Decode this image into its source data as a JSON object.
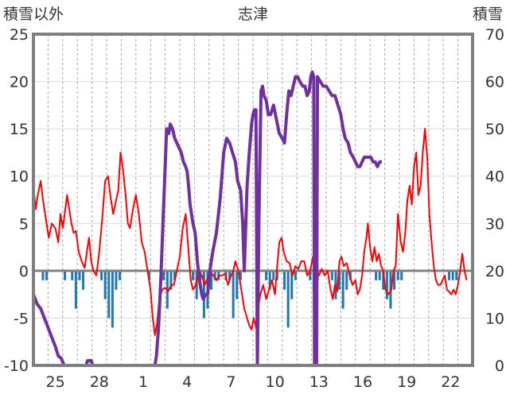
{
  "chart_data": {
    "type": "line",
    "title": "志津",
    "left_axis_title": "積雪以外",
    "right_axis_title": "積雪",
    "ylim_left": [
      -10,
      25
    ],
    "ylim_right": [
      0,
      70
    ],
    "left_ticks": [
      "25",
      "20",
      "15",
      "10",
      "5",
      "0",
      "-5",
      "-10"
    ],
    "right_ticks": [
      "70",
      "60",
      "50",
      "40",
      "30",
      "20",
      "10",
      "0"
    ],
    "x_ticks": [
      "25",
      "28",
      "1",
      "4",
      "7",
      "10",
      "13",
      "16",
      "19",
      "22"
    ],
    "x_range_days": 30,
    "grid": "horizontal solid, vertical dashed",
    "colors": {
      "temperature": "#ff0000",
      "precipitation": "#1f77b4",
      "snow_depth": "#7030a0",
      "zero_line": "#808080",
      "frame": "#7f7f7f"
    },
    "series": [
      {
        "axis": "left",
        "kind": "line",
        "color": "#ff0000",
        "points": [
          [
            0,
            9
          ],
          [
            0.3,
            6.5
          ],
          [
            0.6,
            8
          ],
          [
            1,
            9.5
          ],
          [
            1.3,
            7.5
          ],
          [
            1.7,
            5.5
          ],
          [
            2.1,
            3.5
          ],
          [
            2.5,
            5
          ],
          [
            3,
            4.5
          ],
          [
            3.4,
            3
          ],
          [
            3.7,
            6
          ],
          [
            4,
            4.5
          ],
          [
            4.2,
            5.5
          ],
          [
            4.6,
            8
          ],
          [
            4.8,
            7
          ],
          [
            5.2,
            5
          ],
          [
            5.5,
            4
          ],
          [
            5.8,
            4.2
          ],
          [
            6.2,
            2
          ],
          [
            6.6,
            1
          ],
          [
            7,
            0.3
          ],
          [
            7.4,
            2.5
          ],
          [
            7.6,
            3.5
          ],
          [
            7.9,
            1
          ],
          [
            8.2,
            0
          ],
          [
            8.6,
            -0.5
          ],
          [
            9,
            2
          ],
          [
            9.4,
            5.5
          ],
          [
            9.8,
            9.5
          ],
          [
            10.2,
            10
          ],
          [
            10.5,
            8
          ],
          [
            10.9,
            6
          ],
          [
            11.3,
            7.5
          ],
          [
            11.6,
            8.5
          ],
          [
            11.9,
            12.5
          ],
          [
            12.2,
            11
          ],
          [
            12.6,
            8
          ],
          [
            12.9,
            5
          ],
          [
            13.2,
            4.5
          ],
          [
            13.6,
            6.5
          ],
          [
            14,
            8
          ],
          [
            14.4,
            6
          ],
          [
            14.8,
            3
          ],
          [
            15.2,
            2
          ],
          [
            15.6,
            0
          ],
          [
            16,
            -2
          ],
          [
            16.3,
            -5
          ],
          [
            16.6,
            -6.8
          ],
          [
            16.9,
            -5.5
          ],
          [
            17.2,
            -3
          ],
          [
            17.6,
            -2
          ],
          [
            18,
            -1.8
          ],
          [
            18.4,
            -2.2
          ],
          [
            18.8,
            -1.5
          ],
          [
            19.2,
            -1.5
          ],
          [
            19.6,
            0
          ],
          [
            20,
            1.5
          ],
          [
            20.4,
            4.5
          ],
          [
            20.8,
            6
          ],
          [
            21.2,
            2
          ],
          [
            21.5,
            -1
          ],
          [
            21.8,
            -2
          ],
          [
            22.2,
            -1.5
          ],
          [
            22.6,
            0
          ],
          [
            23,
            -0.5
          ],
          [
            23.4,
            -1.5
          ],
          [
            23.8,
            -0.8
          ],
          [
            24.2,
            -0.2
          ],
          [
            24.6,
            -0.5
          ],
          [
            25,
            -1
          ],
          [
            25.4,
            -0.5
          ],
          [
            25.8,
            -0.5
          ],
          [
            26.2,
            -0.3
          ],
          [
            26.6,
            -1.5
          ],
          [
            27,
            -0.5
          ],
          [
            27.3,
            0
          ],
          [
            27.6,
            1
          ],
          [
            28,
            0
          ],
          [
            28.4,
            -2
          ],
          [
            28.8,
            -4
          ],
          [
            29.2,
            -5
          ],
          [
            29.5,
            -5.8
          ],
          [
            29.8,
            -6.2
          ],
          [
            30.1,
            -5
          ],
          [
            30.4,
            -6
          ],
          [
            30.7,
            -4
          ],
          [
            31,
            -2.5
          ],
          [
            31.4,
            -1.5
          ],
          [
            31.8,
            -3
          ],
          [
            32.2,
            -2
          ],
          [
            32.6,
            -1
          ],
          [
            33,
            -2.5
          ],
          [
            33.3,
            0.5
          ],
          [
            33.6,
            3
          ],
          [
            33.9,
            3.5
          ],
          [
            34.2,
            2
          ],
          [
            34.6,
            1
          ],
          [
            35,
            0.8
          ],
          [
            35.4,
            -0.5
          ],
          [
            35.8,
            0.5
          ],
          [
            36.2,
            0.2
          ],
          [
            36.6,
            1
          ],
          [
            37,
            1
          ],
          [
            37.4,
            -0.5
          ],
          [
            37.8,
            0
          ],
          [
            38.2,
            1.5
          ],
          [
            38.6,
            0.5
          ],
          [
            39,
            -0.5
          ],
          [
            39.4,
            0.2
          ],
          [
            39.8,
            -0.5
          ],
          [
            40.2,
            0
          ],
          [
            40.6,
            -2
          ],
          [
            40.9,
            -3
          ],
          [
            41.2,
            -1.5
          ],
          [
            41.5,
            -2.2
          ],
          [
            41.8,
            1
          ],
          [
            42.1,
            1.5
          ],
          [
            42.4,
            0.5
          ],
          [
            42.8,
            0.8
          ],
          [
            43.2,
            -0.5
          ],
          [
            43.6,
            -1.5
          ],
          [
            44,
            -1
          ],
          [
            44.3,
            -2.5
          ],
          [
            44.6,
            -2
          ],
          [
            44.9,
            -0.5
          ],
          [
            45.2,
            2
          ],
          [
            45.5,
            3.5
          ],
          [
            45.7,
            5
          ],
          [
            46,
            2.5
          ],
          [
            46.3,
            1
          ],
          [
            46.6,
            2.5
          ],
          [
            46.9,
            1
          ],
          [
            47.2,
            1.8
          ],
          [
            47.5,
            0.5
          ],
          [
            47.8,
            0
          ],
          [
            48.1,
            -2
          ],
          [
            48.5,
            -2.5
          ],
          [
            48.9,
            -2
          ],
          [
            49.2,
            0
          ],
          [
            49.5,
            0.5
          ],
          [
            49.8,
            6
          ],
          [
            50.2,
            3
          ],
          [
            50.5,
            2
          ],
          [
            50.8,
            4
          ],
          [
            51.1,
            7.5
          ],
          [
            51.4,
            9
          ],
          [
            51.7,
            7
          ],
          [
            52,
            11
          ],
          [
            52.3,
            12.5
          ],
          [
            52.6,
            8
          ],
          [
            52.9,
            9
          ],
          [
            53.2,
            12.5
          ],
          [
            53.5,
            15
          ],
          [
            53.8,
            12
          ],
          [
            54.1,
            6
          ],
          [
            54.4,
            3
          ],
          [
            54.7,
            0.5
          ],
          [
            55,
            -1
          ],
          [
            55.3,
            -1.5
          ],
          [
            55.6,
            -1.5
          ],
          [
            55.9,
            -1
          ],
          [
            56.2,
            -0.5
          ],
          [
            56.5,
            -2
          ],
          [
            56.8,
            -2.2
          ],
          [
            57.1,
            -2.5
          ],
          [
            57.4,
            -2
          ],
          [
            57.7,
            -2.5
          ],
          [
            58,
            -1.5
          ],
          [
            58.3,
            0
          ],
          [
            58.6,
            1.8
          ],
          [
            58.9,
            0
          ],
          [
            59.2,
            -1
          ]
        ]
      },
      {
        "axis": "left",
        "kind": "bar",
        "color": "#1f77b4",
        "x_start": 1.3,
        "x_step": 0.5,
        "values": [
          -1,
          -1,
          0,
          0,
          0,
          0,
          -1,
          0,
          -1,
          -4,
          -1,
          -2,
          0,
          0,
          0,
          0,
          -1,
          -3,
          -5,
          -6,
          -2,
          -1,
          0,
          0,
          0,
          0,
          0,
          0,
          0,
          -1,
          0,
          0,
          0,
          -1,
          -4,
          -2,
          -1,
          0,
          0,
          0,
          0,
          -1,
          -3,
          -1,
          -5,
          -4,
          -2,
          -1,
          -1,
          0,
          -1,
          -1,
          -5,
          -3,
          -1,
          0,
          0,
          0,
          0,
          0,
          0,
          -1,
          -2,
          -1,
          -1,
          0,
          -2,
          -6,
          -3,
          -1,
          0,
          0,
          0,
          -1,
          -2,
          -1,
          0,
          0,
          0,
          -1,
          -3,
          -2,
          -4,
          -2,
          -1,
          0,
          0,
          0,
          0,
          0,
          0,
          -1,
          -1,
          -2,
          -3,
          -4,
          -2,
          -1,
          -1,
          0,
          0,
          0,
          0,
          0,
          0,
          0,
          0,
          0,
          0,
          0,
          0,
          -1,
          -1,
          -1,
          0,
          0,
          0,
          0,
          0,
          0,
          0
        ]
      },
      {
        "axis": "right",
        "kind": "line",
        "color": "#7030a0",
        "points": [
          [
            0,
            15
          ],
          [
            0.5,
            13
          ],
          [
            1,
            12
          ],
          [
            1.5,
            10
          ],
          [
            2,
            8
          ],
          [
            2.5,
            6
          ],
          [
            3,
            4
          ],
          [
            3.4,
            2
          ],
          [
            3.8,
            1.5
          ],
          [
            4.2,
            0
          ],
          [
            7.2,
            0
          ],
          [
            7.4,
            1
          ],
          [
            7.9,
            1
          ],
          [
            8.1,
            0
          ],
          [
            16.6,
            0
          ],
          [
            16.8,
            2
          ],
          [
            17.1,
            8
          ],
          [
            17.4,
            18
          ],
          [
            17.7,
            30
          ],
          [
            18,
            42
          ],
          [
            18.2,
            50
          ],
          [
            18.5,
            49
          ],
          [
            18.7,
            51
          ],
          [
            19,
            50
          ],
          [
            19.3,
            48
          ],
          [
            19.6,
            47
          ],
          [
            19.9,
            46
          ],
          [
            20.2,
            45
          ],
          [
            20.5,
            43
          ],
          [
            20.8,
            42
          ],
          [
            21,
            41
          ],
          [
            21.2,
            38
          ],
          [
            21.4,
            34
          ],
          [
            21.6,
            32
          ],
          [
            21.8,
            30
          ],
          [
            22.1,
            28
          ],
          [
            22.4,
            22
          ],
          [
            22.7,
            18
          ],
          [
            23,
            15
          ],
          [
            23.2,
            14
          ],
          [
            23.5,
            15
          ],
          [
            23.8,
            15
          ],
          [
            24.1,
            20
          ],
          [
            24.5,
            24
          ],
          [
            25,
            28
          ],
          [
            25.5,
            35
          ],
          [
            26,
            45
          ],
          [
            26.4,
            48
          ],
          [
            26.8,
            47
          ],
          [
            27.2,
            45
          ],
          [
            27.6,
            43
          ],
          [
            27.9,
            39
          ],
          [
            28.3,
            37
          ],
          [
            28.6,
            30
          ],
          [
            28.8,
            20
          ],
          [
            29.2,
            38
          ],
          [
            29.5,
            45
          ],
          [
            29.8,
            51
          ],
          [
            30,
            53
          ],
          [
            30.2,
            54
          ],
          [
            30.4,
            54
          ],
          [
            30.6,
            0
          ],
          [
            30.8,
            30
          ],
          [
            31.1,
            58
          ],
          [
            31.3,
            59
          ],
          [
            31.5,
            57
          ],
          [
            31.8,
            56
          ],
          [
            32.1,
            53
          ],
          [
            32.4,
            53
          ],
          [
            32.8,
            55
          ],
          [
            33.2,
            52
          ],
          [
            33.6,
            49
          ],
          [
            34,
            48
          ],
          [
            34.3,
            47
          ],
          [
            34.6,
            53
          ],
          [
            34.9,
            58
          ],
          [
            35.2,
            57
          ],
          [
            35.5,
            59
          ],
          [
            35.8,
            61
          ],
          [
            36.1,
            61
          ],
          [
            36.4,
            60
          ],
          [
            36.8,
            59
          ],
          [
            37.1,
            59
          ],
          [
            37.4,
            57
          ],
          [
            37.7,
            58
          ],
          [
            37.9,
            61
          ],
          [
            38.1,
            62
          ],
          [
            38.3,
            61
          ],
          [
            38.4,
            0
          ],
          [
            38.7,
            0
          ],
          [
            38.8,
            61
          ],
          [
            39.2,
            60
          ],
          [
            39.6,
            59
          ],
          [
            40,
            59
          ],
          [
            40.4,
            58
          ],
          [
            40.8,
            57
          ],
          [
            41.2,
            57
          ],
          [
            41.6,
            55
          ],
          [
            42,
            53
          ],
          [
            42.3,
            50
          ],
          [
            42.6,
            48
          ],
          [
            43,
            47
          ],
          [
            43.3,
            45
          ],
          [
            43.7,
            44
          ],
          [
            44,
            43
          ],
          [
            44.3,
            42
          ],
          [
            44.6,
            42
          ],
          [
            44.9,
            43
          ],
          [
            45.2,
            44
          ],
          [
            45.5,
            44
          ],
          [
            45.8,
            44
          ],
          [
            46.1,
            44
          ],
          [
            46.4,
            43
          ],
          [
            46.7,
            43
          ],
          [
            47,
            42
          ],
          [
            47.3,
            43
          ],
          [
            47.6,
            43
          ]
        ]
      }
    ]
  }
}
